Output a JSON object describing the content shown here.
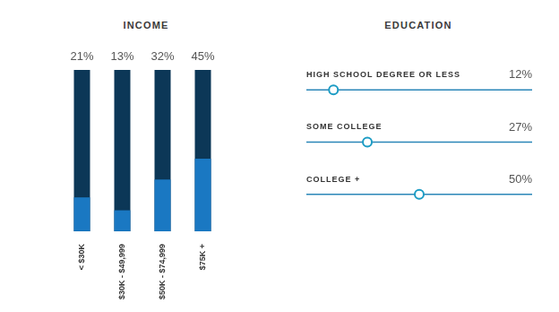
{
  "chart_data": [
    {
      "type": "bar",
      "title": "INCOME",
      "categories": [
        "< $30K",
        "$30K - $49,999",
        "$50K - $74,999",
        "$75K +"
      ],
      "values": [
        21,
        13,
        32,
        45
      ],
      "value_labels": [
        "21%",
        "13%",
        "32%",
        "45%"
      ],
      "color": "#1a78c2",
      "ylim": [
        0,
        100
      ],
      "data_labels": true,
      "tick_labels": "x",
      "grid": false
    },
    {
      "type": "dot",
      "title": "EDUCATION",
      "categories": [
        "HIGH SCHOOL DEGREE OR LESS",
        "SOME COLLEGE",
        "COLLEGE +"
      ],
      "values": [
        12,
        27,
        50
      ],
      "value_labels": [
        "12%",
        "27%",
        "50%"
      ],
      "color": "#1c9cc4",
      "marker": "circle",
      "orientation": "horizontal",
      "xlim": [
        0,
        100
      ],
      "data_labels": true,
      "tick_labels": "y",
      "grid": false
    }
  ]
}
